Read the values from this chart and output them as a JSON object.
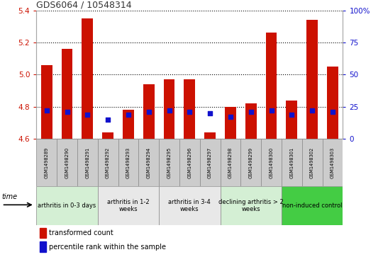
{
  "title": "GDS6064 / 10548314",
  "samples": [
    "GSM1498289",
    "GSM1498290",
    "GSM1498291",
    "GSM1498292",
    "GSM1498293",
    "GSM1498294",
    "GSM1498295",
    "GSM1498296",
    "GSM1498297",
    "GSM1498298",
    "GSM1498299",
    "GSM1498300",
    "GSM1498301",
    "GSM1498302",
    "GSM1498303"
  ],
  "transformed_count": [
    5.06,
    5.16,
    5.35,
    4.64,
    4.78,
    4.94,
    4.97,
    4.97,
    4.64,
    4.8,
    4.82,
    5.26,
    4.84,
    5.34,
    5.05
  ],
  "percentile_rank": [
    22,
    21,
    19,
    15,
    19,
    21,
    22,
    21,
    20,
    17,
    21,
    22,
    19,
    22,
    21
  ],
  "y_min": 4.6,
  "y_max": 5.4,
  "y_ticks": [
    4.6,
    4.8,
    5.0,
    5.2,
    5.4
  ],
  "right_ticks": [
    0,
    25,
    50,
    75,
    100
  ],
  "bar_color": "#cc1100",
  "blue_color": "#1111cc",
  "groups": [
    {
      "label": "arthritis in 0-3 days",
      "start": 0,
      "end": 3,
      "color": "#d4efd4"
    },
    {
      "label": "arthritis in 1-2\nweeks",
      "start": 3,
      "end": 6,
      "color": "#e8e8e8"
    },
    {
      "label": "arthritis in 3-4\nweeks",
      "start": 6,
      "end": 9,
      "color": "#e8e8e8"
    },
    {
      "label": "declining arthritis > 2\nweeks",
      "start": 9,
      "end": 12,
      "color": "#d4efd4"
    },
    {
      "label": "non-induced control",
      "start": 12,
      "end": 15,
      "color": "#44cc44"
    }
  ],
  "legend_bar_label": "transformed count",
  "legend_dot_label": "percentile rank within the sample",
  "left_axis_color": "#cc1100",
  "right_axis_color": "#1111cc",
  "sample_box_color": "#cccccc",
  "plot_bg": "#ffffff"
}
